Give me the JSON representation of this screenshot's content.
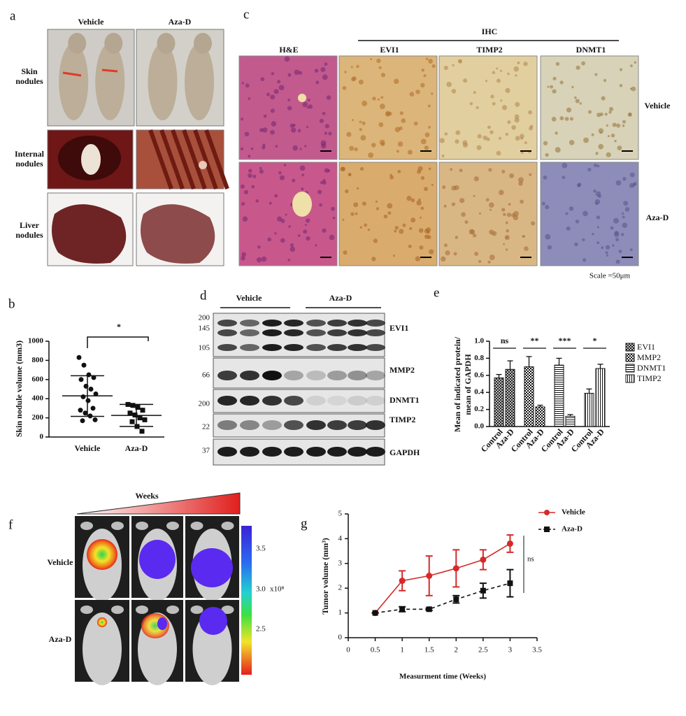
{
  "panel_a": {
    "label": "a",
    "columns": [
      "Vehicle",
      "Aza-D"
    ],
    "rows": [
      "Skin nodules",
      "Internal nodules",
      "Liver nodules"
    ]
  },
  "panel_c": {
    "label": "c",
    "group": "IHC",
    "columns": [
      "H&E",
      "EVI1",
      "TIMP2",
      "DNMT1"
    ],
    "rows": [
      "Vehicle",
      "Aza-D"
    ],
    "scale": "Scale =50μm"
  },
  "panel_d": {
    "label": "d",
    "groups": [
      "Vehicle",
      "Aza-D"
    ],
    "markers": [
      200,
      145,
      105,
      66,
      200,
      22,
      37
    ],
    "proteins": [
      "EVI1",
      "MMP2",
      "DNMT1",
      "TIMP2",
      "GAPDH"
    ]
  },
  "panel_f": {
    "label": "f",
    "axis": "Weeks",
    "rows": [
      "Vehicle",
      "Aza-D"
    ],
    "colorbar_ticks": [
      "3.5",
      "3.0",
      "2.5"
    ],
    "colorbar_unit": "x10⁸"
  },
  "chart_data": [
    {
      "panel": "b",
      "type": "dot",
      "ylabel": "Skin nodule volume (mm3)",
      "categories": [
        "Vehicle",
        "Aza-D"
      ],
      "markers": [
        "circle",
        "square"
      ],
      "points": [
        [
          830,
          750,
          650,
          620,
          600,
          530,
          500,
          450,
          420,
          380,
          300,
          280,
          250,
          220,
          180,
          170
        ],
        [
          340,
          330,
          310,
          280,
          250,
          230,
          200,
          180,
          160,
          110,
          60
        ]
      ],
      "means": [
        430,
        225
      ],
      "error_low": [
        215,
        110
      ],
      "error_high": [
        640,
        340
      ],
      "significance": "*",
      "ylim": [
        0,
        1000
      ],
      "yticks": [
        0,
        200,
        400,
        600,
        800,
        1000
      ]
    },
    {
      "panel": "e",
      "type": "bar",
      "ylabel": [
        "Mean of indicated protein/",
        "mean of GAPDH"
      ],
      "categories": [
        "Control",
        "Aza-D"
      ],
      "series": [
        {
          "name": "EVI1",
          "pattern": "crosshatch",
          "values": [
            0.57,
            0.67
          ],
          "errors": [
            0.04,
            0.1
          ],
          "significance": "ns"
        },
        {
          "name": "MMP2",
          "pattern": "checker",
          "values": [
            0.7,
            0.23
          ],
          "errors": [
            0.12,
            0.02
          ],
          "significance": "**"
        },
        {
          "name": "DNMT1",
          "pattern": "hlines",
          "values": [
            0.72,
            0.12
          ],
          "errors": [
            0.08,
            0.02
          ],
          "significance": "***"
        },
        {
          "name": "TIMP2",
          "pattern": "vlines",
          "values": [
            0.39,
            0.68
          ],
          "errors": [
            0.05,
            0.05
          ],
          "significance": "*"
        }
      ],
      "ylim": [
        0,
        1
      ],
      "yticks": [
        {
          "value": 0,
          "label": "0.0"
        },
        0.2,
        0.4,
        0.6,
        0.8,
        {
          "value": 1,
          "label": "1.0"
        }
      ]
    },
    {
      "panel": "g",
      "type": "line",
      "xlabel": "Measurment time (Weeks)",
      "ylabel": "Tumor volume (mm³)",
      "x": [
        0.5,
        1,
        1.5,
        2,
        2.5,
        3
      ],
      "series": [
        {
          "name": "Vehicle",
          "color": "#d42a2a",
          "marker": "circle",
          "line": "solid",
          "values": [
            1.0,
            2.3,
            2.5,
            2.8,
            3.15,
            3.8
          ],
          "errors": [
            0,
            0.4,
            0.8,
            0.75,
            0.4,
            0.35
          ]
        },
        {
          "name": "Aza-D",
          "color": "#111111",
          "marker": "square",
          "line": "dashed",
          "values": [
            1.0,
            1.15,
            1.15,
            1.55,
            1.9,
            2.2
          ],
          "errors": [
            0,
            0.1,
            0.05,
            0.15,
            0.3,
            0.55
          ]
        }
      ],
      "annotation": "ns",
      "xlim": [
        0,
        3.5
      ],
      "xticks": [
        0,
        0.5,
        1,
        1.5,
        2,
        2.5,
        3,
        3.5
      ],
      "ylim": [
        0,
        5
      ],
      "yticks": [
        0,
        1,
        2,
        3,
        4,
        5
      ]
    }
  ]
}
